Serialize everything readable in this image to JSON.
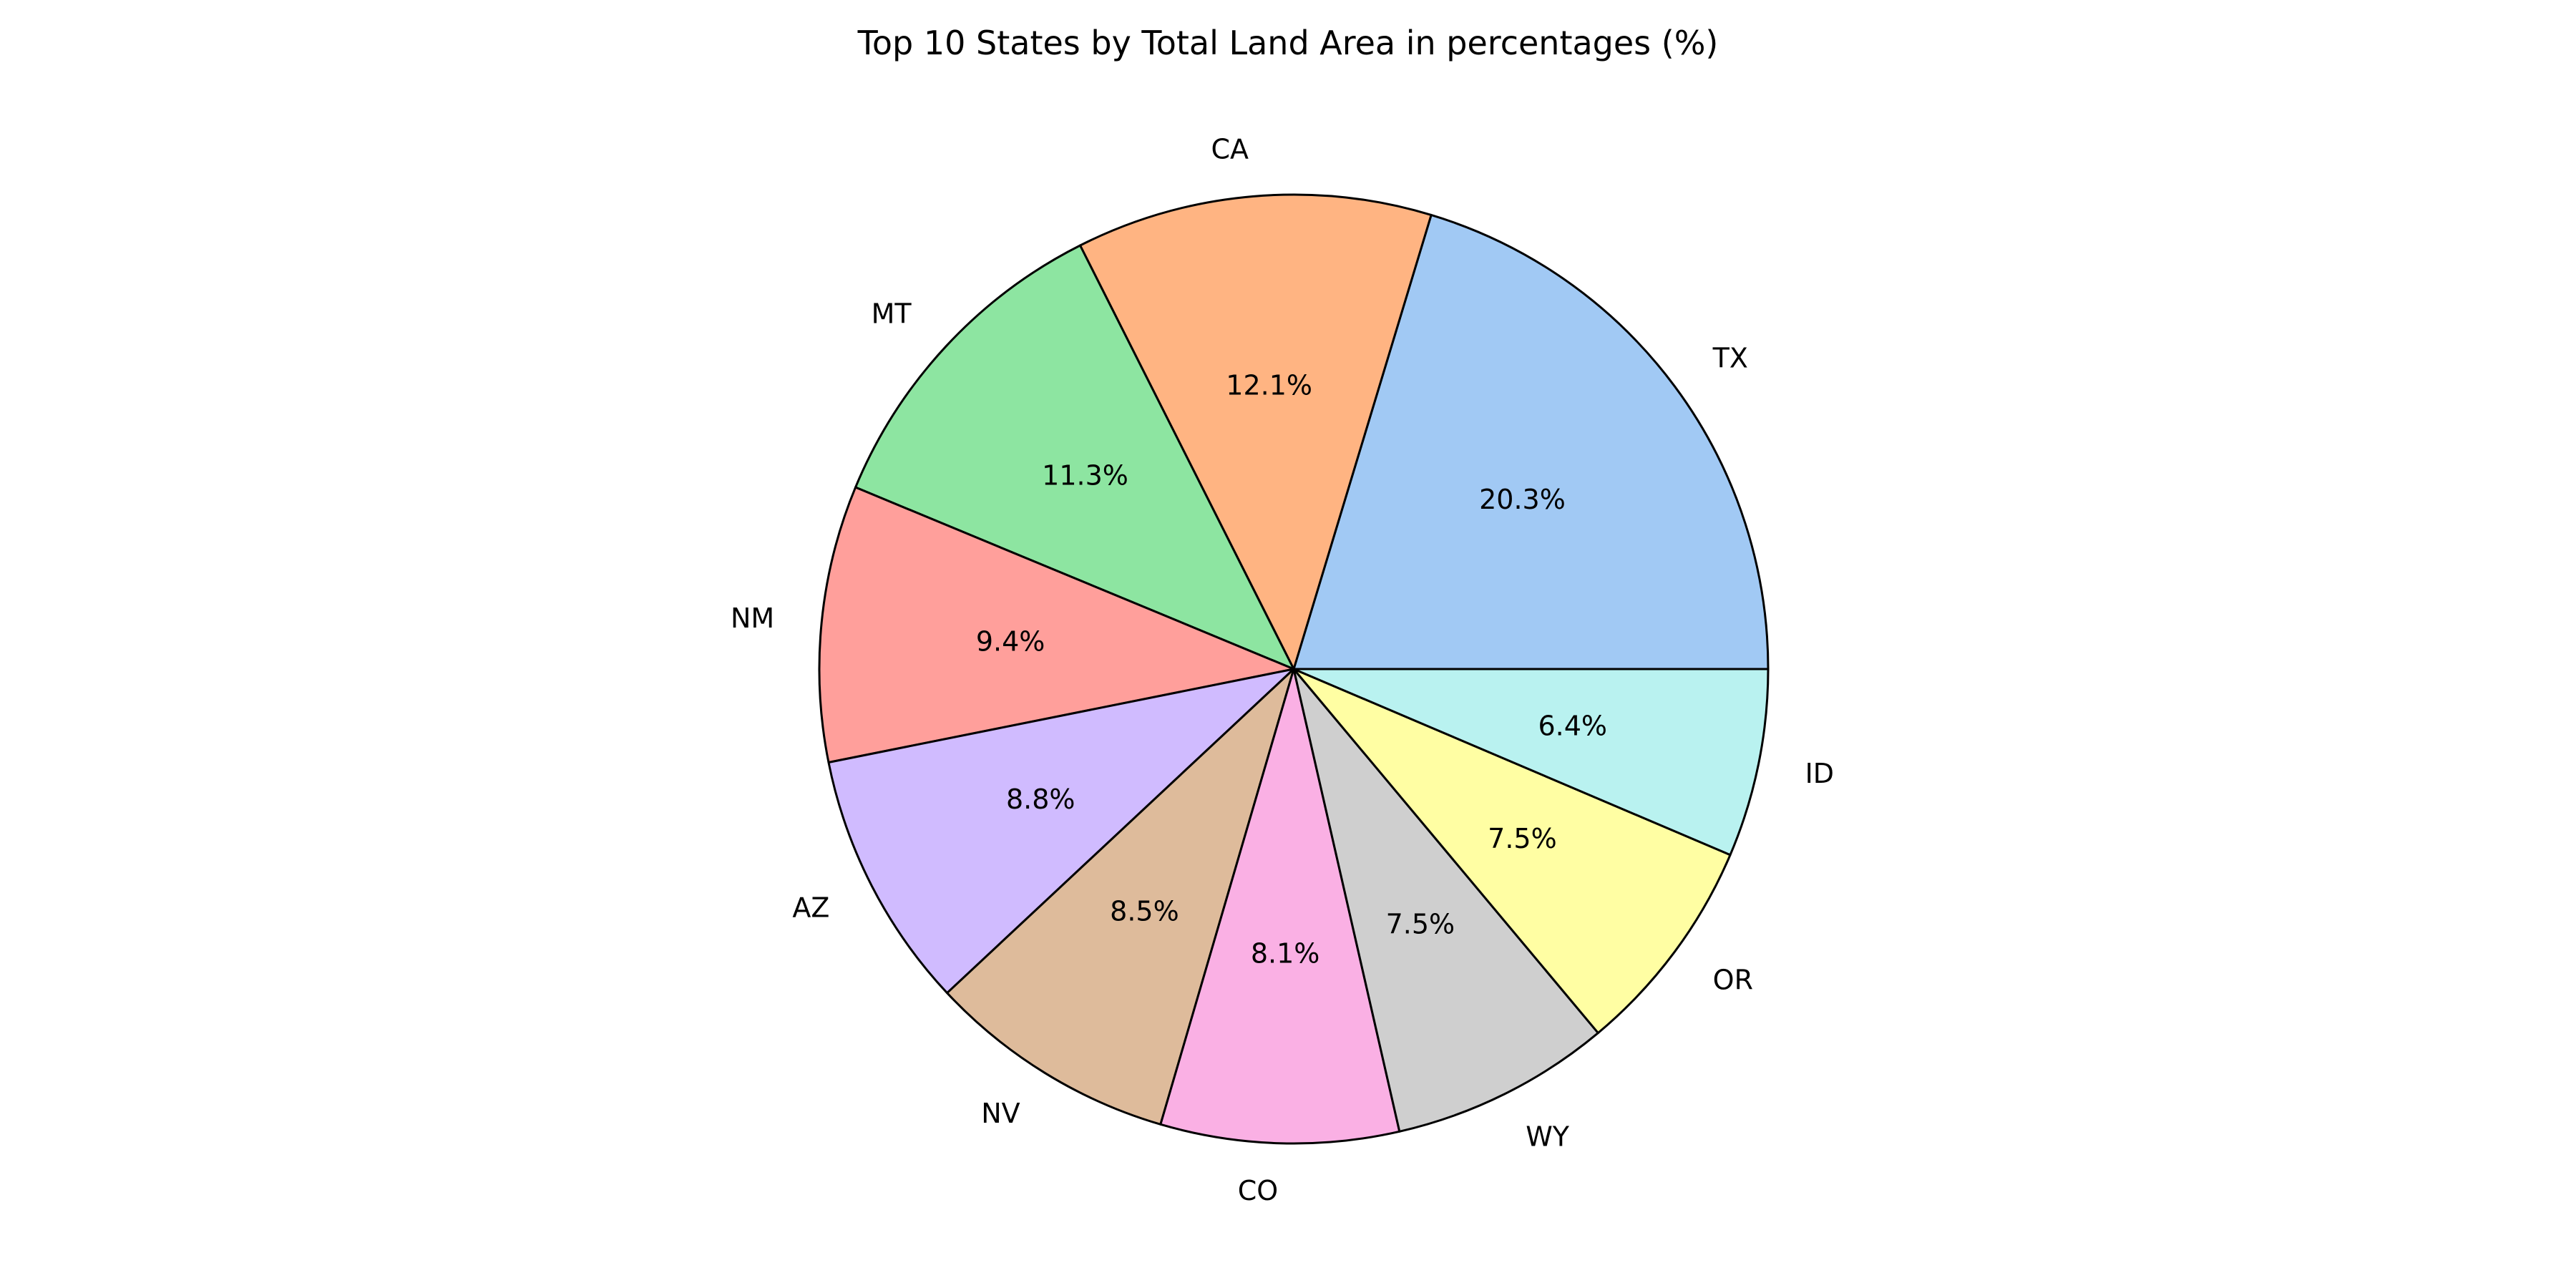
{
  "chart_data": {
    "type": "pie",
    "title": "Top 10 States by Total Land Area in percentages (%)",
    "start_angle_deg": 0,
    "direction": "counterclockwise",
    "slices": [
      {
        "label": "TX",
        "value": 20.3,
        "pct_label": "20.3%",
        "color": "#a1c9f4"
      },
      {
        "label": "CA",
        "value": 12.1,
        "pct_label": "12.1%",
        "color": "#ffb482"
      },
      {
        "label": "MT",
        "value": 11.3,
        "pct_label": "11.3%",
        "color": "#8de5a1"
      },
      {
        "label": "NM",
        "value": 9.4,
        "pct_label": "9.4%",
        "color": "#ff9f9b"
      },
      {
        "label": "AZ",
        "value": 8.8,
        "pct_label": "8.8%",
        "color": "#d0bbff"
      },
      {
        "label": "NV",
        "value": 8.5,
        "pct_label": "8.5%",
        "color": "#debb9b"
      },
      {
        "label": "CO",
        "value": 8.1,
        "pct_label": "8.1%",
        "color": "#fab0e4"
      },
      {
        "label": "WY",
        "value": 7.5,
        "pct_label": "7.5%",
        "color": "#cfcfcf"
      },
      {
        "label": "OR",
        "value": 7.5,
        "pct_label": "7.5%",
        "color": "#fffea3"
      },
      {
        "label": "ID",
        "value": 6.4,
        "pct_label": "6.4%",
        "color": "#b9f2f0"
      }
    ],
    "edge_color": "#000000",
    "legend": "none"
  }
}
